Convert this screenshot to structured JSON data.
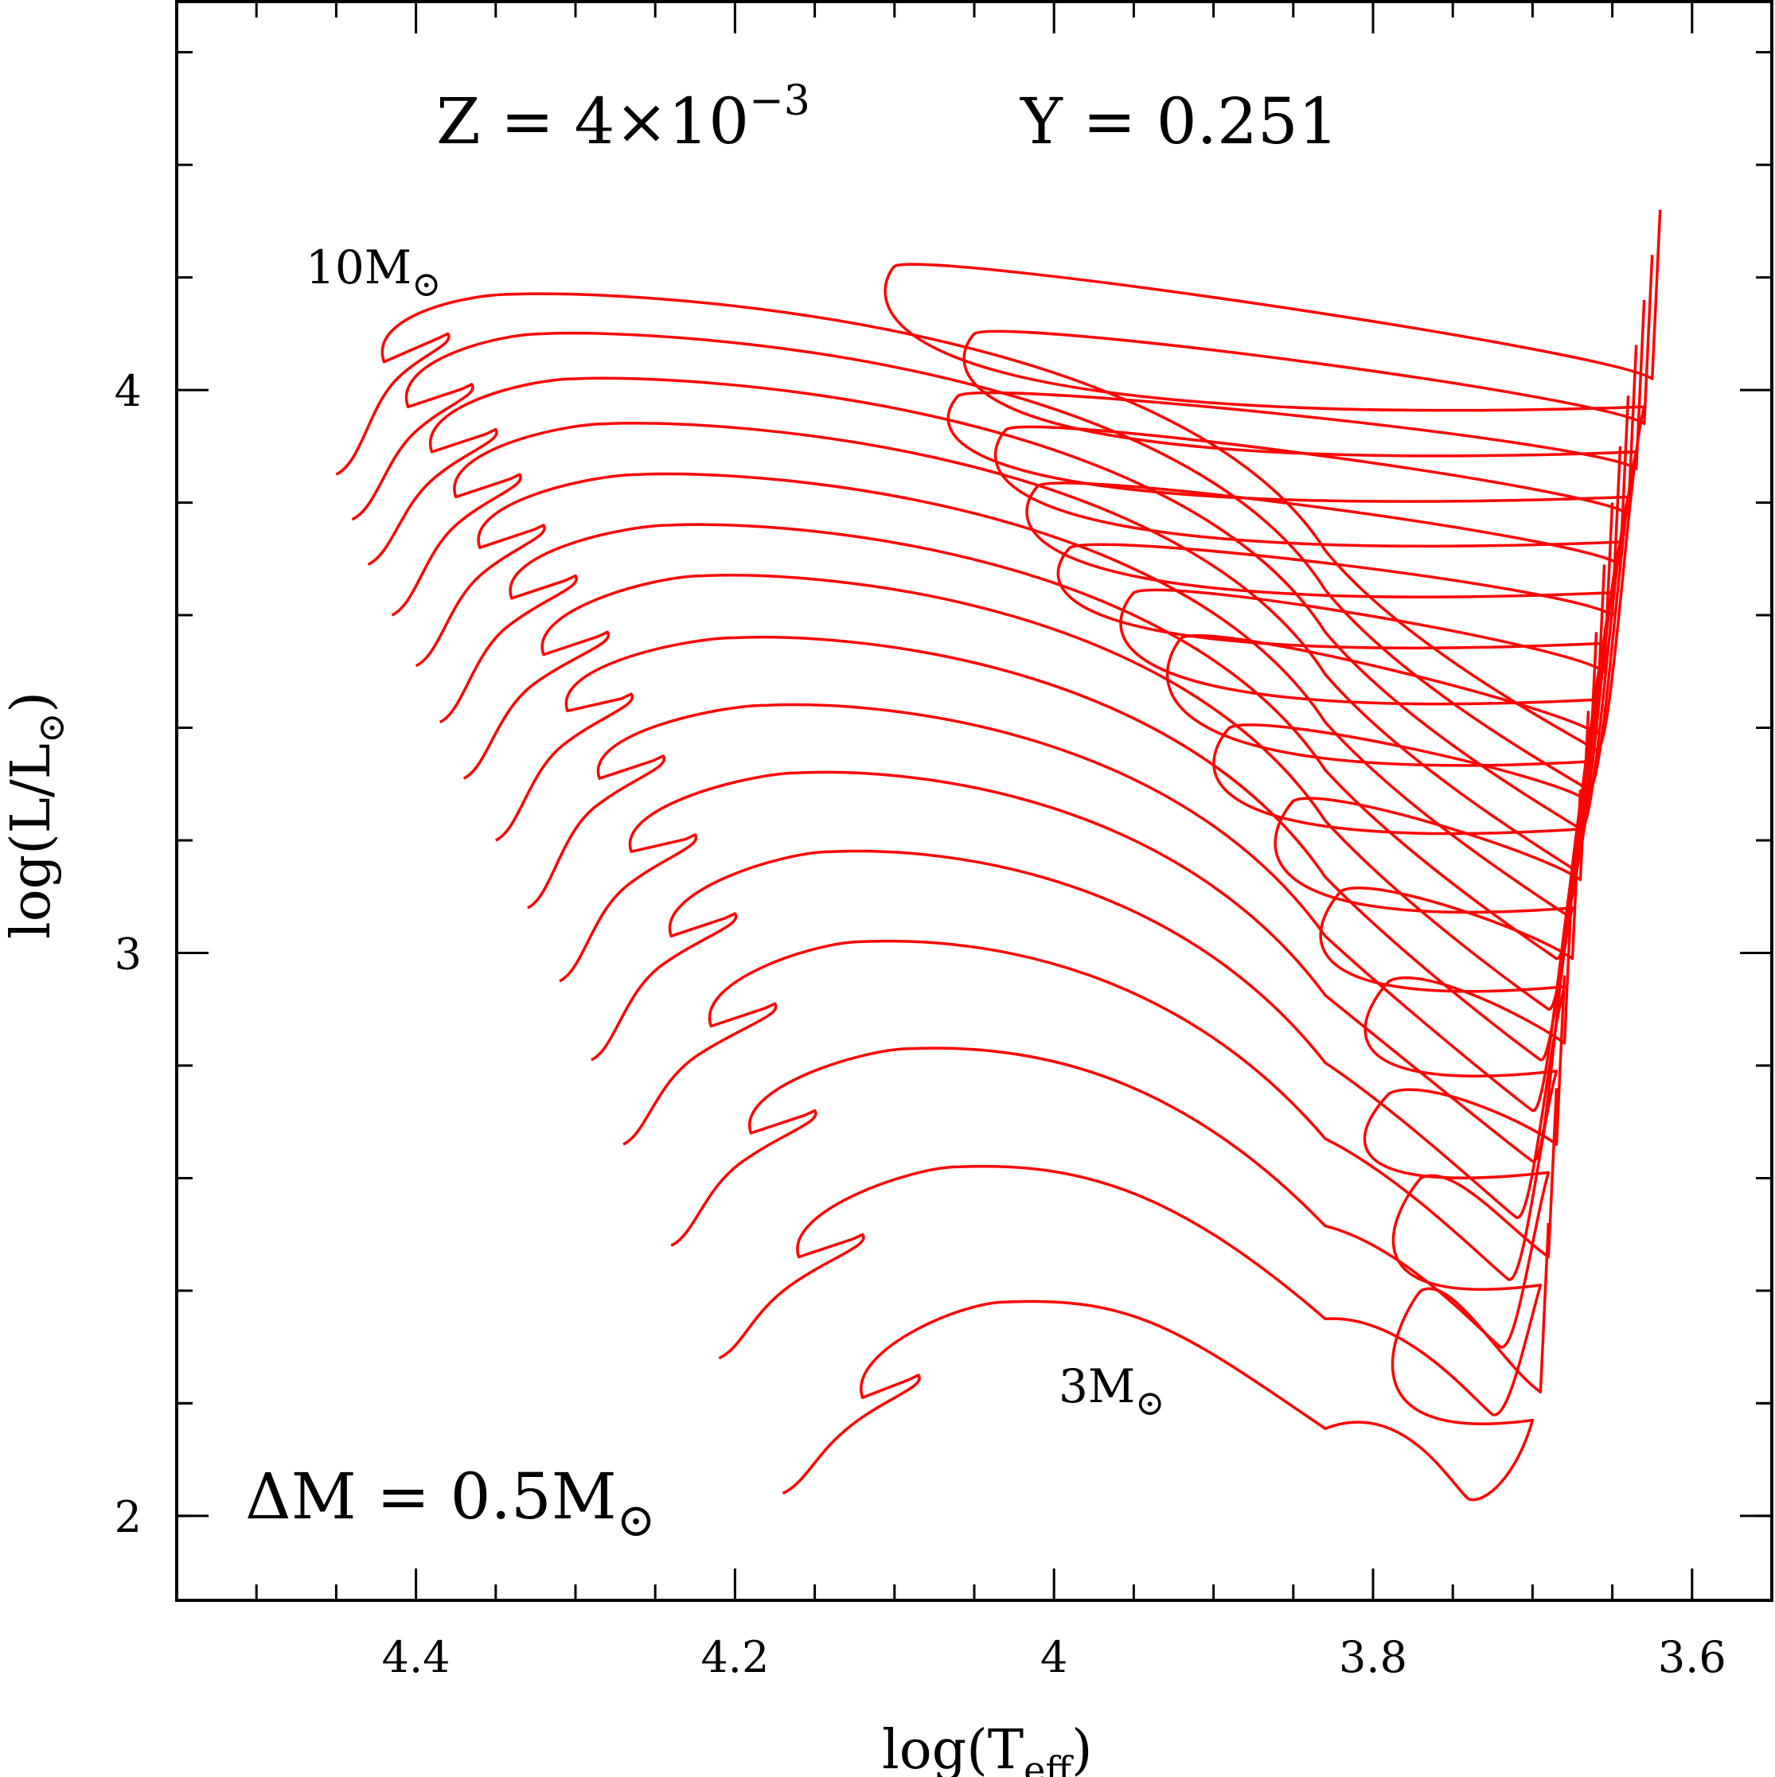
{
  "chart_data": {
    "type": "line",
    "title": "",
    "xlabel": "log(T",
    "xlabel_sub": "eff",
    "xlabel_close": ")",
    "ylabel": "log(L/L",
    "ylabel_sub": "⊙",
    "ylabel_close": ")",
    "xlim": [
      4.55,
      3.55
    ],
    "ylim": [
      1.85,
      4.69
    ],
    "xticks": [
      4.4,
      4.2,
      4,
      3.8,
      3.6
    ],
    "xtick_labels": [
      "4.4",
      "4.2",
      "4",
      "3.8",
      "3.6"
    ],
    "yticks": [
      2,
      3,
      4
    ],
    "ytick_labels": [
      "2",
      "3",
      "4"
    ],
    "x_minor_step": 0.05,
    "y_minor_step": 0.2,
    "line_color": "#ff0000",
    "annotations": {
      "z": "Z = 4×10",
      "z_exp": "−3",
      "y": "Y = 0.251",
      "mass_top": "10M",
      "mass_top_sym": "⊙",
      "mass_bottom": "3M",
      "mass_bottom_sym": "⊙",
      "delta_m": "ΔM = 0.5M",
      "delta_m_sym": "⊙"
    },
    "tracks": [
      {
        "mass": 3.0,
        "zams_T": 4.17,
        "zams_L": 2.04,
        "hook_T": 4.085,
        "hook_L": 2.25,
        "ret_T": 4.12,
        "ret_L": 2.31,
        "top_T": 4.03,
        "top_L": 2.38,
        "gap_T": 3.74,
        "gap_L": 2.03,
        "rgb_T": 3.69,
        "rgb_L": 2.52,
        "bl_T": 3.77,
        "bl_L": 2.4
      },
      {
        "mass": 3.5,
        "zams_T": 4.21,
        "zams_L": 2.28,
        "hook_T": 4.12,
        "hook_L": 2.5,
        "ret_T": 4.16,
        "ret_L": 2.56,
        "top_T": 4.06,
        "top_L": 2.62,
        "gap_T": 3.725,
        "gap_L": 2.18,
        "rgb_T": 3.685,
        "rgb_L": 2.76,
        "bl_T": 3.77,
        "bl_L": 2.6
      },
      {
        "mass": 4.0,
        "zams_T": 4.24,
        "zams_L": 2.48,
        "hook_T": 4.15,
        "hook_L": 2.72,
        "ret_T": 4.19,
        "ret_L": 2.78,
        "top_T": 4.09,
        "top_L": 2.83,
        "gap_T": 3.72,
        "gap_L": 2.3,
        "rgb_T": 3.68,
        "rgb_L": 2.96,
        "bl_T": 3.79,
        "bl_L": 2.75
      },
      {
        "mass": 4.5,
        "zams_T": 4.27,
        "zams_L": 2.66,
        "hook_T": 4.175,
        "hook_L": 2.91,
        "ret_T": 4.215,
        "ret_L": 2.97,
        "top_T": 4.12,
        "top_L": 3.02,
        "gap_T": 3.715,
        "gap_L": 2.42,
        "rgb_T": 3.675,
        "rgb_L": 3.14,
        "bl_T": 3.79,
        "bl_L": 2.95
      },
      {
        "mass": 5.0,
        "zams_T": 4.29,
        "zams_L": 2.81,
        "hook_T": 4.2,
        "hook_L": 3.07,
        "ret_T": 4.24,
        "ret_L": 3.13,
        "top_T": 4.14,
        "top_L": 3.18,
        "gap_T": 3.71,
        "gap_L": 2.53,
        "rgb_T": 3.67,
        "rgb_L": 3.29,
        "bl_T": 3.82,
        "bl_L": 3.11
      },
      {
        "mass": 5.5,
        "zams_T": 4.31,
        "zams_L": 2.95,
        "hook_T": 4.225,
        "hook_L": 3.21,
        "ret_T": 4.265,
        "ret_L": 3.28,
        "top_T": 4.16,
        "top_L": 3.32,
        "gap_T": 3.7,
        "gap_L": 2.63,
        "rgb_T": 3.665,
        "rgb_L": 3.43,
        "bl_T": 3.85,
        "bl_L": 3.27
      },
      {
        "mass": 6.0,
        "zams_T": 4.33,
        "zams_L": 3.08,
        "hook_T": 4.245,
        "hook_L": 3.35,
        "ret_T": 4.285,
        "ret_L": 3.41,
        "top_T": 4.18,
        "top_L": 3.44,
        "gap_T": 3.7,
        "gap_L": 2.72,
        "rgb_T": 3.66,
        "rgb_L": 3.57,
        "bl_T": 3.89,
        "bl_L": 3.4
      },
      {
        "mass": 6.5,
        "zams_T": 4.35,
        "zams_L": 3.2,
        "hook_T": 4.265,
        "hook_L": 3.46,
        "ret_T": 4.305,
        "ret_L": 3.53,
        "top_T": 4.2,
        "top_L": 3.56,
        "gap_T": 3.695,
        "gap_L": 2.81,
        "rgb_T": 3.655,
        "rgb_L": 3.69,
        "bl_T": 3.92,
        "bl_L": 3.56
      },
      {
        "mass": 7.0,
        "zams_T": 4.37,
        "zams_L": 3.31,
        "hook_T": 4.28,
        "hook_L": 3.57,
        "ret_T": 4.32,
        "ret_L": 3.63,
        "top_T": 4.22,
        "top_L": 3.67,
        "gap_T": 3.69,
        "gap_L": 2.9,
        "rgb_T": 3.65,
        "rgb_L": 3.8,
        "bl_T": 3.95,
        "bl_L": 3.64
      },
      {
        "mass": 7.5,
        "zams_T": 4.385,
        "zams_L": 3.41,
        "hook_T": 4.3,
        "hook_L": 3.67,
        "ret_T": 4.34,
        "ret_L": 3.73,
        "top_T": 4.24,
        "top_L": 3.76,
        "gap_T": 3.685,
        "gap_L": 2.99,
        "rgb_T": 3.645,
        "rgb_L": 3.9,
        "bl_T": 3.99,
        "bl_L": 3.72
      },
      {
        "mass": 8.0,
        "zams_T": 4.4,
        "zams_L": 3.51,
        "hook_T": 4.32,
        "hook_L": 3.76,
        "ret_T": 4.36,
        "ret_L": 3.82,
        "top_T": 4.26,
        "top_L": 3.85,
        "gap_T": 3.68,
        "gap_L": 3.07,
        "rgb_T": 3.64,
        "rgb_L": 3.99,
        "bl_T": 4.01,
        "bl_L": 3.83
      },
      {
        "mass": 8.5,
        "zams_T": 4.415,
        "zams_L": 3.6,
        "hook_T": 4.335,
        "hook_L": 3.85,
        "ret_T": 4.375,
        "ret_L": 3.91,
        "top_T": 4.28,
        "top_L": 3.94,
        "gap_T": 3.675,
        "gap_L": 3.15,
        "rgb_T": 3.635,
        "rgb_L": 4.08,
        "bl_T": 4.03,
        "bl_L": 3.93
      },
      {
        "mass": 9.0,
        "zams_T": 4.43,
        "zams_L": 3.69,
        "hook_T": 4.35,
        "hook_L": 3.93,
        "ret_T": 4.39,
        "ret_L": 3.99,
        "top_T": 4.3,
        "top_L": 4.02,
        "gap_T": 3.67,
        "gap_L": 3.22,
        "rgb_T": 3.63,
        "rgb_L": 4.16,
        "bl_T": 4.06,
        "bl_L": 3.99
      },
      {
        "mass": 9.5,
        "zams_T": 4.44,
        "zams_L": 3.77,
        "hook_T": 4.365,
        "hook_L": 4.01,
        "ret_T": 4.405,
        "ret_L": 4.07,
        "top_T": 4.32,
        "top_L": 4.1,
        "gap_T": 3.665,
        "gap_L": 3.29,
        "rgb_T": 3.625,
        "rgb_L": 4.24,
        "bl_T": 4.05,
        "bl_L": 4.1
      },
      {
        "mass": 10.0,
        "zams_T": 4.45,
        "zams_L": 3.85,
        "hook_T": 4.38,
        "hook_L": 4.1,
        "ret_T": 4.42,
        "ret_L": 4.15,
        "top_T": 4.34,
        "top_L": 4.17,
        "gap_T": 3.66,
        "gap_L": 3.36,
        "rgb_T": 3.62,
        "rgb_L": 4.32,
        "bl_T": 4.1,
        "bl_L": 4.22
      }
    ]
  }
}
